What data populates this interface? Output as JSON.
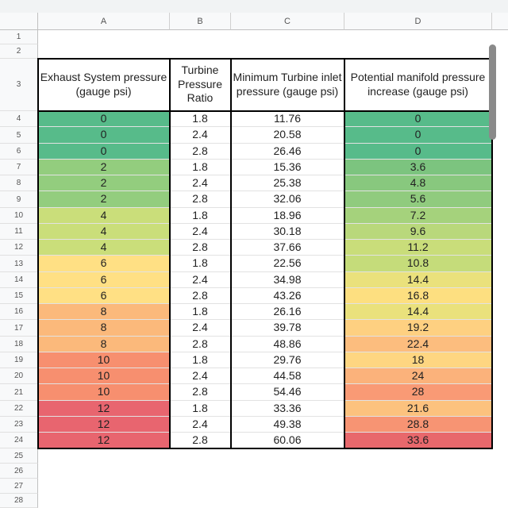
{
  "columns": [
    "A",
    "B",
    "C",
    "D"
  ],
  "header_row": {
    "row_number": "3",
    "a": "Exhaust System pressure (gauge psi)",
    "b": "Turbine Pressure Ratio",
    "c": "Minimum Turbine inlet pressure (gauge psi)",
    "d": "Potential manifold pressure increase (gauge psi)"
  },
  "empty_rows_top": [
    "1",
    "2"
  ],
  "empty_rows_bottom": [
    "25",
    "26",
    "27",
    "28"
  ],
  "rows": [
    {
      "n": "4",
      "a": "0",
      "b": "1.8",
      "c": "11.76",
      "d": "0",
      "color_a": "#57bb8a",
      "color_d": "#57bb8a"
    },
    {
      "n": "5",
      "a": "0",
      "b": "2.4",
      "c": "20.58",
      "d": "0",
      "color_a": "#57bb8a",
      "color_d": "#57bb8a"
    },
    {
      "n": "6",
      "a": "0",
      "b": "2.8",
      "c": "26.46",
      "d": "0",
      "color_a": "#57bb8a",
      "color_d": "#57bb8a"
    },
    {
      "n": "7",
      "a": "2",
      "b": "1.8",
      "c": "15.36",
      "d": "3.6",
      "color_a": "#93cd7e",
      "color_d": "#7cc47f"
    },
    {
      "n": "8",
      "a": "2",
      "b": "2.4",
      "c": "25.38",
      "d": "4.8",
      "color_a": "#93cd7e",
      "color_d": "#88c87e"
    },
    {
      "n": "9",
      "a": "2",
      "b": "2.8",
      "c": "32.06",
      "d": "5.6",
      "color_a": "#93cd7e",
      "color_d": "#90cb7e"
    },
    {
      "n": "10",
      "a": "4",
      "b": "1.8",
      "c": "18.96",
      "d": "7.2",
      "color_a": "#cade7a",
      "color_d": "#a5d27c"
    },
    {
      "n": "11",
      "a": "4",
      "b": "2.4",
      "c": "30.18",
      "d": "9.6",
      "color_a": "#cade7a",
      "color_d": "#b9d87b"
    },
    {
      "n": "12",
      "a": "4",
      "b": "2.8",
      "c": "37.66",
      "d": "11.2",
      "color_a": "#cade7a",
      "color_d": "#c9dd7a"
    },
    {
      "n": "13",
      "a": "6",
      "b": "1.8",
      "c": "22.56",
      "d": "10.8",
      "color_a": "#ffe084",
      "color_d": "#c5dc7a"
    },
    {
      "n": "14",
      "a": "6",
      "b": "2.4",
      "c": "34.98",
      "d": "14.4",
      "color_a": "#ffe084",
      "color_d": "#eae17c"
    },
    {
      "n": "15",
      "a": "6",
      "b": "2.8",
      "c": "43.26",
      "d": "16.8",
      "color_a": "#ffe084",
      "color_d": "#fddf80"
    },
    {
      "n": "16",
      "a": "8",
      "b": "1.8",
      "c": "26.16",
      "d": "14.4",
      "color_a": "#fbb97b",
      "color_d": "#eae17c"
    },
    {
      "n": "17",
      "a": "8",
      "b": "2.4",
      "c": "39.78",
      "d": "19.2",
      "color_a": "#fbb97b",
      "color_d": "#fed081"
    },
    {
      "n": "18",
      "a": "8",
      "b": "2.8",
      "c": "48.86",
      "d": "22.4",
      "color_a": "#fbb97b",
      "color_d": "#fcbd7e"
    },
    {
      "n": "19",
      "a": "10",
      "b": "1.8",
      "c": "29.76",
      "d": "18",
      "color_a": "#f78f6f",
      "color_d": "#fed681"
    },
    {
      "n": "20",
      "a": "10",
      "b": "2.4",
      "c": "44.58",
      "d": "24",
      "color_a": "#f78f6f",
      "color_d": "#fbb27b"
    },
    {
      "n": "21",
      "a": "10",
      "b": "2.8",
      "c": "54.46",
      "d": "28",
      "color_a": "#f78f6f",
      "color_d": "#f99a75"
    },
    {
      "n": "22",
      "a": "12",
      "b": "1.8",
      "c": "33.36",
      "d": "21.6",
      "color_a": "#e8656f",
      "color_d": "#fcc27e"
    },
    {
      "n": "23",
      "a": "12",
      "b": "2.4",
      "c": "49.38",
      "d": "28.8",
      "color_a": "#e8656f",
      "color_d": "#f79473"
    },
    {
      "n": "24",
      "a": "12",
      "b": "2.8",
      "c": "60.06",
      "d": "33.6",
      "color_a": "#e8656f",
      "color_d": "#e8686c"
    }
  ]
}
